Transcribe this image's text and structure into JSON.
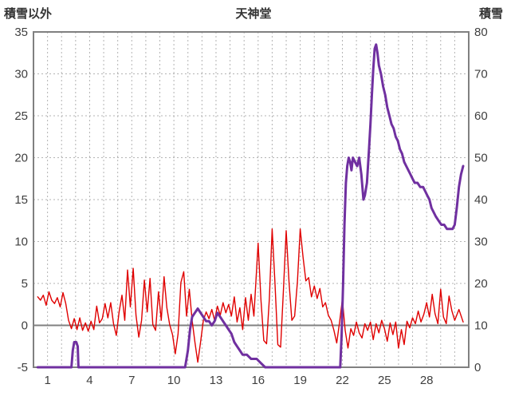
{
  "header": {
    "left_axis_title": "積雪以外",
    "title": "天神堂",
    "right_axis_title": "積雪"
  },
  "colors": {
    "red": "#e00000",
    "purple": "#7030a0",
    "grid": "#b3b3b3",
    "frame": "#808080",
    "text": "#3f3f3f"
  },
  "chart_data": {
    "type": "line",
    "title": "天神堂",
    "x_axis": {
      "min": 0,
      "max": 31,
      "ticks": [
        1,
        4,
        7,
        10,
        13,
        16,
        19,
        22,
        25,
        28
      ],
      "gridline_every": 1
    },
    "left_axis": {
      "label": "積雪以外",
      "min": -5,
      "max": 35,
      "ticks": [
        35,
        30,
        25,
        20,
        15,
        10,
        5,
        0,
        -5
      ]
    },
    "right_axis": {
      "label": "積雪",
      "min": 0,
      "max": 80,
      "ticks": [
        80,
        70,
        60,
        50,
        40,
        30,
        20,
        10,
        0
      ]
    },
    "grid": true,
    "legend": "none",
    "series": [
      {
        "name": "積雪以外",
        "axis": "left",
        "color": "#e00000",
        "width": 1.4,
        "points": [
          [
            0.3,
            3.4
          ],
          [
            0.5,
            3.0
          ],
          [
            0.7,
            3.6
          ],
          [
            0.9,
            2.4
          ],
          [
            1.1,
            4.0
          ],
          [
            1.3,
            3.0
          ],
          [
            1.5,
            2.6
          ],
          [
            1.7,
            3.3
          ],
          [
            1.9,
            2.2
          ],
          [
            2.1,
            3.9
          ],
          [
            2.3,
            2.6
          ],
          [
            2.5,
            0.6
          ],
          [
            2.7,
            -0.4
          ],
          [
            2.9,
            0.8
          ],
          [
            3.1,
            -0.5
          ],
          [
            3.3,
            0.9
          ],
          [
            3.5,
            -0.6
          ],
          [
            3.7,
            0.3
          ],
          [
            3.9,
            -0.7
          ],
          [
            4.1,
            0.5
          ],
          [
            4.3,
            -0.5
          ],
          [
            4.5,
            2.3
          ],
          [
            4.7,
            0.3
          ],
          [
            4.9,
            0.8
          ],
          [
            5.1,
            2.6
          ],
          [
            5.3,
            0.9
          ],
          [
            5.5,
            2.7
          ],
          [
            5.7,
            0.2
          ],
          [
            5.9,
            -1.2
          ],
          [
            6.1,
            1.6
          ],
          [
            6.3,
            3.6
          ],
          [
            6.5,
            0.6
          ],
          [
            6.7,
            6.6
          ],
          [
            6.9,
            2.2
          ],
          [
            7.1,
            6.8
          ],
          [
            7.3,
            1.2
          ],
          [
            7.5,
            -1.4
          ],
          [
            7.7,
            0.6
          ],
          [
            7.9,
            5.4
          ],
          [
            8.1,
            1.6
          ],
          [
            8.3,
            5.6
          ],
          [
            8.5,
            0.1
          ],
          [
            8.7,
            -0.6
          ],
          [
            8.9,
            4.0
          ],
          [
            9.1,
            0.6
          ],
          [
            9.3,
            5.8
          ],
          [
            9.5,
            2.1
          ],
          [
            9.7,
            0.1
          ],
          [
            9.9,
            -1.1
          ],
          [
            10.1,
            -3.4
          ],
          [
            10.3,
            -1.0
          ],
          [
            10.5,
            5.1
          ],
          [
            10.7,
            6.4
          ],
          [
            10.9,
            1.1
          ],
          [
            11.1,
            4.3
          ],
          [
            11.3,
            0.6
          ],
          [
            11.5,
            -2.0
          ],
          [
            11.7,
            -4.4
          ],
          [
            11.9,
            -2.0
          ],
          [
            12.1,
            0.6
          ],
          [
            12.3,
            1.6
          ],
          [
            12.5,
            0.8
          ],
          [
            12.7,
            1.9
          ],
          [
            12.9,
            0.6
          ],
          [
            13.1,
            2.3
          ],
          [
            13.3,
            1.2
          ],
          [
            13.5,
            2.7
          ],
          [
            13.7,
            1.5
          ],
          [
            13.9,
            2.5
          ],
          [
            14.1,
            1.1
          ],
          [
            14.3,
            3.4
          ],
          [
            14.5,
            0.4
          ],
          [
            14.7,
            2.1
          ],
          [
            14.9,
            -0.5
          ],
          [
            15.1,
            3.3
          ],
          [
            15.3,
            0.6
          ],
          [
            15.5,
            3.7
          ],
          [
            15.7,
            1.1
          ],
          [
            16.0,
            9.8
          ],
          [
            16.2,
            3.1
          ],
          [
            16.4,
            -1.8
          ],
          [
            16.6,
            -2.2
          ],
          [
            16.8,
            3.2
          ],
          [
            17.0,
            11.5
          ],
          [
            17.2,
            5.1
          ],
          [
            17.4,
            -2.3
          ],
          [
            17.6,
            -2.6
          ],
          [
            17.8,
            4.1
          ],
          [
            18.0,
            11.3
          ],
          [
            18.2,
            5.1
          ],
          [
            18.4,
            0.6
          ],
          [
            18.6,
            1.1
          ],
          [
            18.8,
            5.2
          ],
          [
            19.0,
            11.5
          ],
          [
            19.2,
            8.1
          ],
          [
            19.4,
            5.3
          ],
          [
            19.6,
            5.7
          ],
          [
            19.8,
            3.4
          ],
          [
            20.0,
            4.7
          ],
          [
            20.2,
            3.2
          ],
          [
            20.4,
            4.4
          ],
          [
            20.6,
            2.2
          ],
          [
            20.8,
            2.7
          ],
          [
            21.0,
            1.2
          ],
          [
            21.2,
            0.6
          ],
          [
            21.4,
            -0.6
          ],
          [
            21.6,
            -2.1
          ],
          [
            21.8,
            0.4
          ],
          [
            22.0,
            3.1
          ],
          [
            22.2,
            -0.6
          ],
          [
            22.4,
            -2.7
          ],
          [
            22.6,
            -0.4
          ],
          [
            22.8,
            -1.2
          ],
          [
            23.0,
            0.4
          ],
          [
            23.2,
            -0.9
          ],
          [
            23.4,
            -1.5
          ],
          [
            23.6,
            0.2
          ],
          [
            23.8,
            -0.6
          ],
          [
            24.0,
            0.4
          ],
          [
            24.2,
            -1.7
          ],
          [
            24.4,
            0.2
          ],
          [
            24.6,
            -0.9
          ],
          [
            24.8,
            0.6
          ],
          [
            25.0,
            -0.4
          ],
          [
            25.2,
            -1.9
          ],
          [
            25.4,
            0.3
          ],
          [
            25.6,
            -1.1
          ],
          [
            25.8,
            0.4
          ],
          [
            26.0,
            -2.7
          ],
          [
            26.2,
            -0.5
          ],
          [
            26.4,
            -2.3
          ],
          [
            26.6,
            0.5
          ],
          [
            26.8,
            -0.3
          ],
          [
            27.0,
            0.9
          ],
          [
            27.2,
            0.2
          ],
          [
            27.4,
            1.7
          ],
          [
            27.6,
            0.4
          ],
          [
            27.8,
            1.3
          ],
          [
            28.0,
            2.7
          ],
          [
            28.2,
            1.0
          ],
          [
            28.4,
            3.7
          ],
          [
            28.6,
            1.4
          ],
          [
            28.8,
            0.2
          ],
          [
            29.0,
            4.3
          ],
          [
            29.2,
            1.0
          ],
          [
            29.4,
            0.2
          ],
          [
            29.6,
            3.5
          ],
          [
            29.8,
            1.7
          ],
          [
            30.0,
            0.6
          ],
          [
            30.3,
            1.9
          ],
          [
            30.6,
            0.4
          ]
        ]
      },
      {
        "name": "積雪",
        "axis": "right",
        "color": "#7030a0",
        "width": 3,
        "points": [
          [
            0.3,
            0
          ],
          [
            2.7,
            0
          ],
          [
            2.8,
            4
          ],
          [
            2.9,
            6
          ],
          [
            3.05,
            6
          ],
          [
            3.15,
            5
          ],
          [
            3.2,
            0
          ],
          [
            10.8,
            0
          ],
          [
            11.0,
            4
          ],
          [
            11.15,
            9
          ],
          [
            11.3,
            12
          ],
          [
            11.5,
            13
          ],
          [
            11.7,
            14
          ],
          [
            11.9,
            13
          ],
          [
            12.1,
            12
          ],
          [
            12.3,
            11
          ],
          [
            12.5,
            11
          ],
          [
            12.7,
            10
          ],
          [
            12.9,
            11
          ],
          [
            13.1,
            13
          ],
          [
            13.3,
            12
          ],
          [
            13.5,
            11
          ],
          [
            13.7,
            10
          ],
          [
            13.9,
            9
          ],
          [
            14.1,
            8
          ],
          [
            14.3,
            6
          ],
          [
            14.5,
            5
          ],
          [
            14.7,
            4
          ],
          [
            14.9,
            3
          ],
          [
            15.2,
            3
          ],
          [
            15.5,
            2
          ],
          [
            15.9,
            2
          ],
          [
            16.2,
            1
          ],
          [
            16.5,
            0
          ],
          [
            21.85,
            0
          ],
          [
            21.95,
            8
          ],
          [
            22.05,
            20
          ],
          [
            22.15,
            34
          ],
          [
            22.25,
            44
          ],
          [
            22.35,
            48
          ],
          [
            22.45,
            50
          ],
          [
            22.55,
            49
          ],
          [
            22.65,
            47
          ],
          [
            22.75,
            50
          ],
          [
            22.9,
            49
          ],
          [
            23.05,
            48
          ],
          [
            23.2,
            50
          ],
          [
            23.35,
            46
          ],
          [
            23.5,
            40
          ],
          [
            23.6,
            41
          ],
          [
            23.75,
            44
          ],
          [
            23.9,
            52
          ],
          [
            24.0,
            58
          ],
          [
            24.1,
            65
          ],
          [
            24.2,
            71
          ],
          [
            24.3,
            76
          ],
          [
            24.4,
            77
          ],
          [
            24.5,
            75
          ],
          [
            24.6,
            72
          ],
          [
            24.75,
            70
          ],
          [
            24.9,
            67
          ],
          [
            25.05,
            65
          ],
          [
            25.2,
            62
          ],
          [
            25.35,
            60
          ],
          [
            25.5,
            58
          ],
          [
            25.65,
            57
          ],
          [
            25.8,
            55
          ],
          [
            25.95,
            54
          ],
          [
            26.1,
            52
          ],
          [
            26.25,
            51
          ],
          [
            26.4,
            49
          ],
          [
            26.55,
            48
          ],
          [
            26.7,
            47
          ],
          [
            26.85,
            46
          ],
          [
            27.0,
            45
          ],
          [
            27.15,
            44
          ],
          [
            27.35,
            44
          ],
          [
            27.55,
            43
          ],
          [
            27.75,
            43
          ],
          [
            27.9,
            42
          ],
          [
            28.05,
            41
          ],
          [
            28.2,
            40
          ],
          [
            28.35,
            38
          ],
          [
            28.5,
            37
          ],
          [
            28.65,
            36
          ],
          [
            28.85,
            35
          ],
          [
            29.05,
            34
          ],
          [
            29.25,
            34
          ],
          [
            29.45,
            33
          ],
          [
            29.65,
            33
          ],
          [
            29.85,
            33
          ],
          [
            30.0,
            34
          ],
          [
            30.15,
            38
          ],
          [
            30.3,
            43
          ],
          [
            30.45,
            46
          ],
          [
            30.6,
            48
          ]
        ]
      }
    ]
  }
}
